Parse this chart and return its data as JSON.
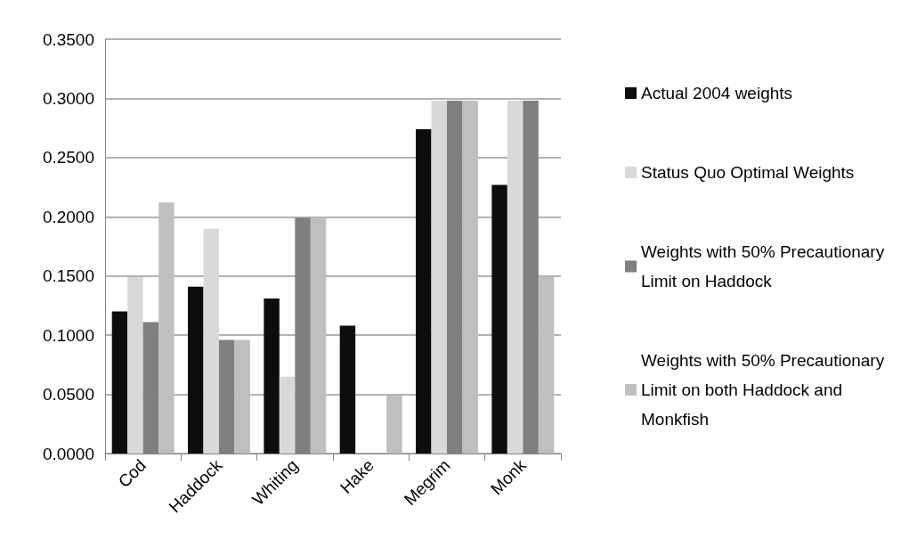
{
  "chart_data": {
    "type": "bar",
    "categories": [
      "Cod",
      "Haddock",
      "Whiting",
      "Hake",
      "Megrim",
      "Monk"
    ],
    "series": [
      {
        "name": "Actual 2004 weights",
        "color": "#0d0d0d",
        "values": [
          0.12,
          0.141,
          0.131,
          0.108,
          0.274,
          0.227
        ]
      },
      {
        "name": "Status Quo Optimal Weights",
        "color": "#d9d9d9",
        "values": [
          0.149,
          0.19,
          0.065,
          0,
          0.298,
          0.298
        ]
      },
      {
        "name": "Weights with 50% Precautionary Limit on Haddock",
        "color": "#7f7f7f",
        "values": [
          0.111,
          0.096,
          0.199,
          0,
          0.298,
          0.298
        ]
      },
      {
        "name": "Weights with 50% Precautionary Limit on both Haddock and Monkfish",
        "color": "#bfbfbf",
        "values": [
          0.212,
          0.096,
          0.199,
          0.049,
          0.298,
          0.149
        ]
      }
    ],
    "ylim": [
      0,
      0.35
    ],
    "yticks": [
      {
        "value": 0,
        "label": "0.0000"
      },
      {
        "value": 0.05,
        "label": "0.0500"
      },
      {
        "value": 0.1,
        "label": "0.1000"
      },
      {
        "value": 0.15,
        "label": "0.1500"
      },
      {
        "value": 0.2,
        "label": "0.2000"
      },
      {
        "value": 0.25,
        "label": "0.2500"
      },
      {
        "value": 0.3,
        "label": "0.3000"
      },
      {
        "value": 0.35,
        "label": "0.3500"
      }
    ],
    "grid": "y",
    "legend": "right"
  }
}
